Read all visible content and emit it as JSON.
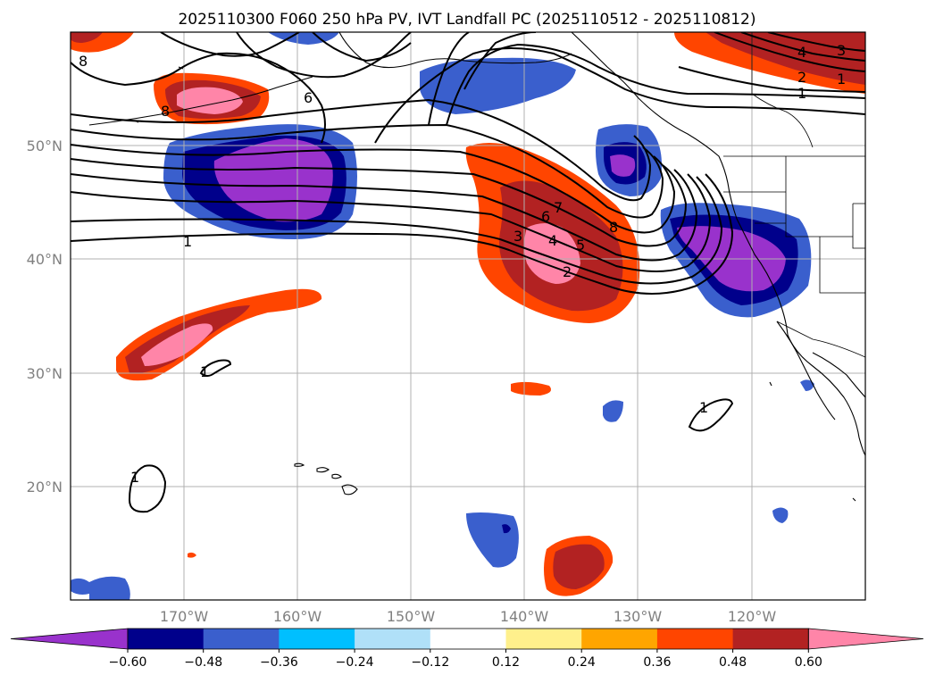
{
  "title": "2025110300 F060 250 hPa PV, IVT Landfall PC (2025110512 - 2025110812)",
  "x_ticks": [
    "170°W",
    "160°W",
    "150°W",
    "140°W",
    "130°W",
    "120°W"
  ],
  "y_ticks": [
    "50°N",
    "40°N",
    "30°N",
    "20°N"
  ],
  "colorbar": {
    "ticks": [
      "−0.60",
      "−0.48",
      "−0.36",
      "−0.24",
      "−0.12",
      "0.12",
      "0.24",
      "0.36",
      "0.48",
      "0.60"
    ],
    "colors": [
      "#9932cc",
      "#00008b",
      "#3a5fcd",
      "#00bfff",
      "#b0e0f8",
      "#ffffff",
      "#fff08c",
      "#ffa500",
      "#ff4500",
      "#b22222",
      "#ff85a8",
      "#ff85a8"
    ]
  },
  "map_data": {
    "projection": "PlateCarree",
    "lon_range": [
      -180,
      -110
    ],
    "lat_range": [
      10,
      60
    ],
    "contour_labels": [
      "8",
      "6",
      "8",
      "1",
      "1",
      "1",
      "1",
      "3",
      "4",
      "5",
      "2",
      "6",
      "7",
      "8",
      "4",
      "3",
      "2",
      "1",
      "1"
    ]
  }
}
